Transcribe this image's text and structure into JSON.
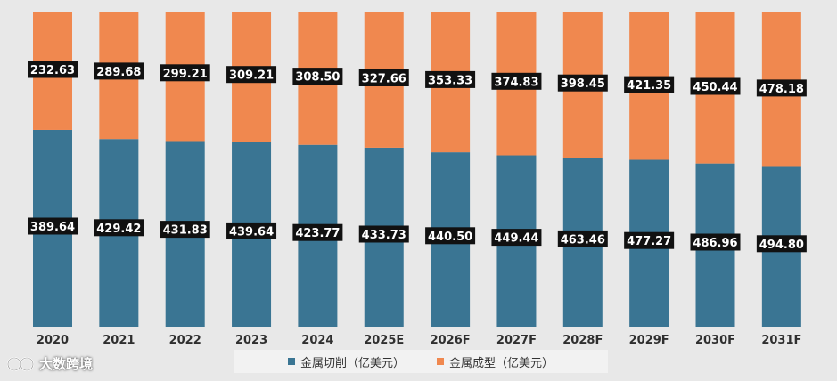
{
  "chart_data": {
    "type": "bar",
    "stacked": true,
    "normalized": true,
    "categories": [
      "2020",
      "2021",
      "2022",
      "2023",
      "2024",
      "2025E",
      "2026F",
      "2027F",
      "2028F",
      "2029F",
      "2030F",
      "2031F"
    ],
    "series": [
      {
        "name": "金属切削（亿美元）",
        "color": "#3a7593",
        "values": [
          389.64,
          429.42,
          431.83,
          439.64,
          423.77,
          433.73,
          440.5,
          449.44,
          463.46,
          477.27,
          486.96,
          494.8
        ],
        "labels": [
          "389.64",
          "429.42",
          "431.83",
          "439.64",
          "423.77",
          "433.73",
          "440.50",
          "449.44",
          "463.46",
          "477.27",
          "486.96",
          "494.80"
        ]
      },
      {
        "name": "金属成型（亿美元）",
        "color": "#f0884f",
        "values": [
          232.63,
          289.68,
          299.21,
          309.21,
          308.5,
          327.66,
          353.33,
          374.83,
          398.45,
          421.35,
          450.44,
          478.18
        ],
        "labels": [
          "232.63",
          "289.68",
          "299.21",
          "309.21",
          "308.50",
          "327.66",
          "353.33",
          "374.83",
          "398.45",
          "421.35",
          "450.44",
          "478.18"
        ]
      }
    ],
    "legend": {
      "position": "bottom"
    }
  },
  "legend": {
    "cutting": "金属切削（亿美元）",
    "forming": "金属成型（亿美元）"
  },
  "brand": {
    "name": "大数跨境"
  },
  "colors": {
    "cutting": "#3a7593",
    "forming": "#f0884f",
    "label_bg": "#111111"
  }
}
